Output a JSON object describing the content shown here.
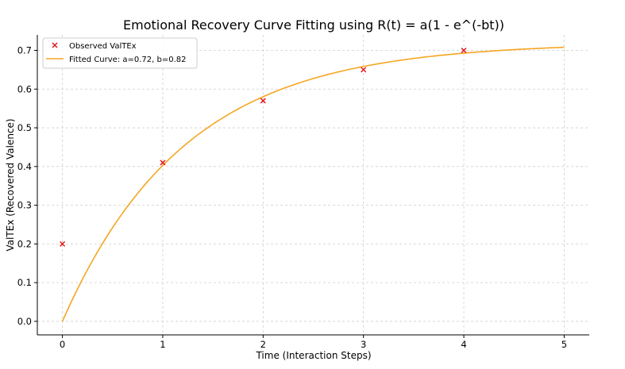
{
  "chart_data": {
    "type": "scatter",
    "title": "Emotional Recovery Curve Fitting using R(t) = a(1 - e^(-bt))",
    "xlabel": "Time (Interaction Steps)",
    "ylabel": "ValTEx (Recovered Valence)",
    "xlim": [
      -0.25,
      5.25
    ],
    "ylim": [
      -0.035,
      0.74
    ],
    "xticks": [
      0,
      1,
      2,
      3,
      4,
      5
    ],
    "xtick_labels": [
      "0",
      "1",
      "2",
      "3",
      "4",
      "5"
    ],
    "yticks": [
      0.0,
      0.1,
      0.2,
      0.3,
      0.4,
      0.5,
      0.6,
      0.7
    ],
    "ytick_labels": [
      "0.0",
      "0.1",
      "0.2",
      "0.3",
      "0.4",
      "0.5",
      "0.6",
      "0.7"
    ],
    "grid": true,
    "legend_position": "top-left",
    "series": [
      {
        "name": "Observed ValTEx",
        "kind": "scatter",
        "marker": "x",
        "color": "#e41a1c",
        "x": [
          0,
          1,
          2,
          3,
          4
        ],
        "y": [
          0.2,
          0.41,
          0.57,
          0.65,
          0.7
        ]
      },
      {
        "name": "Fitted Curve: a=0.72, b=0.82",
        "kind": "line",
        "color": "#f5a623",
        "a": 0.72,
        "b": 0.82,
        "x_range": [
          0,
          5
        ]
      }
    ]
  }
}
